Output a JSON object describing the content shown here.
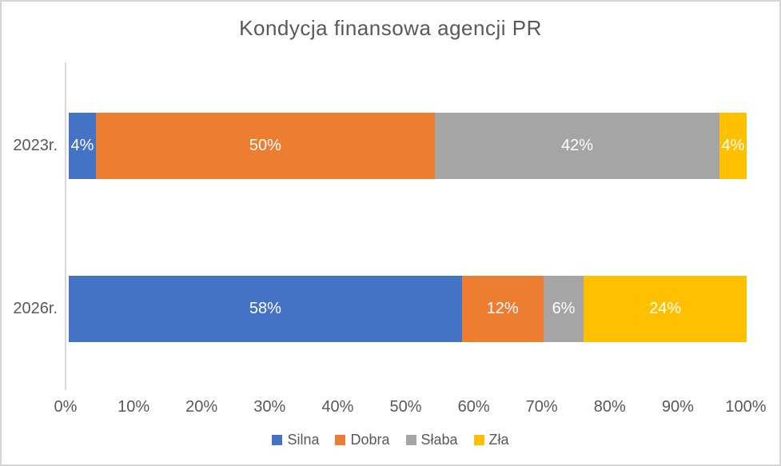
{
  "chart_data": {
    "type": "bar",
    "stacked": true,
    "orientation": "horizontal",
    "title": "Kondycja finansowa agencji PR",
    "categories": [
      "2023r.",
      "2026r."
    ],
    "series": [
      {
        "name": "Silna",
        "color": "#4472C4",
        "values": [
          4,
          58
        ]
      },
      {
        "name": "Dobra",
        "color": "#ED7D31",
        "values": [
          50,
          12
        ]
      },
      {
        "name": "Słaba",
        "color": "#A5A5A5",
        "values": [
          42,
          6
        ]
      },
      {
        "name": "Zła",
        "color": "#FFC000",
        "values": [
          4,
          24
        ]
      }
    ],
    "data_label_suffix": "%",
    "data_label_color": "#FFFFFF",
    "x_ticks": [
      "0%",
      "10%",
      "20%",
      "30%",
      "40%",
      "50%",
      "60%",
      "70%",
      "80%",
      "90%",
      "100%"
    ],
    "xlim": [
      0,
      100
    ],
    "legend_position": "bottom",
    "grid": false,
    "title_color": "#595959",
    "axis_text_color": "#595959",
    "axis_line_color": "#D9D9D9"
  }
}
